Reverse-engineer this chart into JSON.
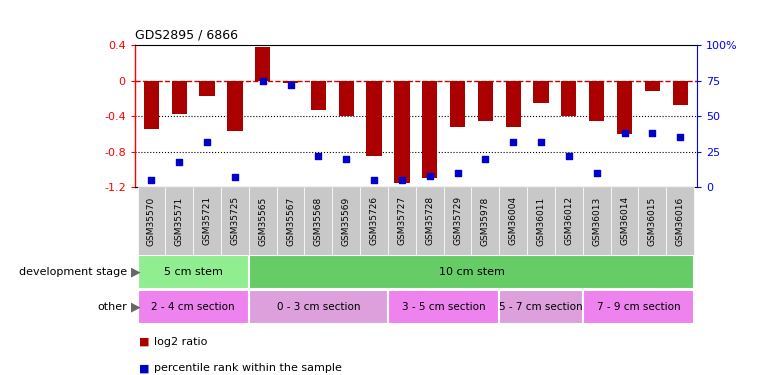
{
  "title": "GDS2895 / 6866",
  "samples": [
    "GSM35570",
    "GSM35571",
    "GSM35721",
    "GSM35725",
    "GSM35565",
    "GSM35567",
    "GSM35568",
    "GSM35569",
    "GSM35726",
    "GSM35727",
    "GSM35728",
    "GSM35729",
    "GSM35978",
    "GSM36004",
    "GSM36011",
    "GSM36012",
    "GSM36013",
    "GSM36014",
    "GSM36015",
    "GSM36016"
  ],
  "log2_ratio": [
    -0.55,
    -0.38,
    -0.17,
    -0.57,
    0.38,
    -0.03,
    -0.33,
    -0.4,
    -0.85,
    -1.15,
    -1.1,
    -0.52,
    -0.45,
    -0.52,
    -0.25,
    -0.4,
    -0.45,
    -0.6,
    -0.12,
    -0.28
  ],
  "percentile": [
    5,
    18,
    32,
    7,
    75,
    72,
    22,
    20,
    5,
    5,
    8,
    10,
    20,
    32,
    32,
    22,
    10,
    38,
    38,
    35
  ],
  "ylim_left": [
    -1.2,
    0.4
  ],
  "ylim_right": [
    0,
    100
  ],
  "yticks_left": [
    0.4,
    0.0,
    -0.4,
    -0.8,
    -1.2
  ],
  "yticks_right": [
    100,
    75,
    50,
    25,
    0
  ],
  "development_stage_groups": [
    {
      "label": "5 cm stem",
      "start": 0,
      "end": 4,
      "color": "#90EE90"
    },
    {
      "label": "10 cm stem",
      "start": 4,
      "end": 20,
      "color": "#66CC66"
    }
  ],
  "other_groups": [
    {
      "label": "2 - 4 cm section",
      "start": 0,
      "end": 4,
      "color": "#EE82EE"
    },
    {
      "label": "0 - 3 cm section",
      "start": 4,
      "end": 9,
      "color": "#DDA0DD"
    },
    {
      "label": "3 - 5 cm section",
      "start": 9,
      "end": 13,
      "color": "#EE82EE"
    },
    {
      "label": "5 - 7 cm section",
      "start": 13,
      "end": 16,
      "color": "#DDA0DD"
    },
    {
      "label": "7 - 9 cm section",
      "start": 16,
      "end": 20,
      "color": "#EE82EE"
    }
  ],
  "bar_color": "#AA0000",
  "scatter_color": "#0000CC",
  "zero_line_color": "#CC0000",
  "bg_color": "#FFFFFF",
  "dev_label": "development stage",
  "other_label": "other",
  "legend1": "log2 ratio",
  "legend2": "percentile rank within the sample"
}
